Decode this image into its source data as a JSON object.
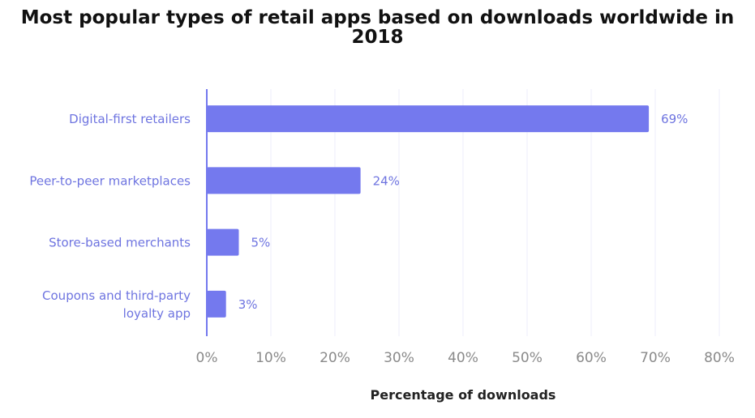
{
  "chart_data": {
    "type": "bar",
    "orientation": "horizontal",
    "title": "Most popular types of retail apps based on downloads worldwide in 2018",
    "xlabel": "Percentage of downloads",
    "ylabel": "",
    "categories": [
      "Digital-first retailers",
      "Peer-to-peer marketplaces",
      "Store-based merchants",
      "Coupons and third-party loyalty app"
    ],
    "values": [
      69,
      24,
      5,
      3
    ],
    "data_labels": [
      "69%",
      "24%",
      "5%",
      "3%"
    ],
    "xlim": [
      0,
      80
    ],
    "xticks": [
      "0%",
      "10%",
      "20%",
      "30%",
      "40%",
      "50%",
      "60%",
      "70%",
      "80%"
    ],
    "grid": true,
    "colors": {
      "bar": "#7479EE",
      "label": "#6E74E0",
      "tick": "#8a8a8a",
      "grid": "#eeeefb"
    }
  }
}
